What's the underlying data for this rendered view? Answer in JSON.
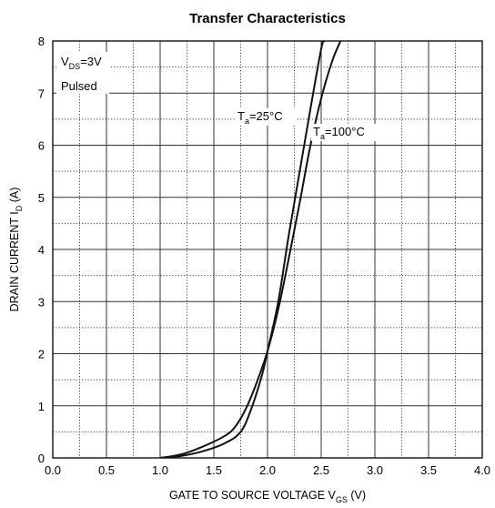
{
  "chart_data": {
    "type": "line",
    "title": "Transfer Characteristics",
    "xlabel": {
      "main": "GATE TO SOURCE VOLTAGE V",
      "sub": "GS",
      "unit": " (V)"
    },
    "ylabel": {
      "main": "DRAIN CURRENT I",
      "sub": "D",
      "unit": " (A)"
    },
    "xlim": [
      0,
      4
    ],
    "ylim": [
      0,
      8
    ],
    "x_ticks": [
      0.0,
      0.5,
      1.0,
      1.5,
      2.0,
      2.5,
      3.0,
      3.5,
      4.0
    ],
    "x_tick_labels": [
      "0.0",
      "0.5",
      "1.0",
      "1.5",
      "2.0",
      "2.5",
      "3.0",
      "3.5",
      "4.0"
    ],
    "y_ticks": [
      0,
      1,
      2,
      3,
      4,
      5,
      6,
      7,
      8
    ],
    "y_tick_labels": [
      "0",
      "1",
      "2",
      "3",
      "4",
      "5",
      "6",
      "7",
      "8"
    ],
    "grid": true,
    "minor_grid": "dotted",
    "conditions": [
      {
        "main": "V",
        "sub": "DS",
        "rest": "=3V"
      },
      {
        "main": "Pulsed",
        "sub": "",
        "rest": ""
      }
    ],
    "series": [
      {
        "name": "T_a=25°C",
        "label": {
          "main": "T",
          "sub": "a",
          "rest": "=25°C"
        },
        "x": [
          1.0,
          1.2,
          1.4,
          1.6,
          1.75,
          1.85,
          1.95,
          2.0,
          2.1,
          2.2,
          2.3,
          2.4,
          2.5,
          2.53
        ],
        "y": [
          0.0,
          0.04,
          0.13,
          0.28,
          0.5,
          0.95,
          1.6,
          2.05,
          3.0,
          4.3,
          5.5,
          6.7,
          7.85,
          8.0
        ]
      },
      {
        "name": "T_a=100°C",
        "label": {
          "main": "T",
          "sub": "a",
          "rest": "=100°C"
        },
        "x": [
          1.0,
          1.2,
          1.4,
          1.6,
          1.7,
          1.8,
          1.9,
          2.0,
          2.1,
          2.2,
          2.3,
          2.4,
          2.5,
          2.6,
          2.68
        ],
        "y": [
          0.0,
          0.07,
          0.22,
          0.42,
          0.6,
          0.95,
          1.45,
          2.05,
          2.85,
          3.85,
          4.9,
          6.0,
          6.9,
          7.6,
          8.0
        ]
      }
    ]
  }
}
